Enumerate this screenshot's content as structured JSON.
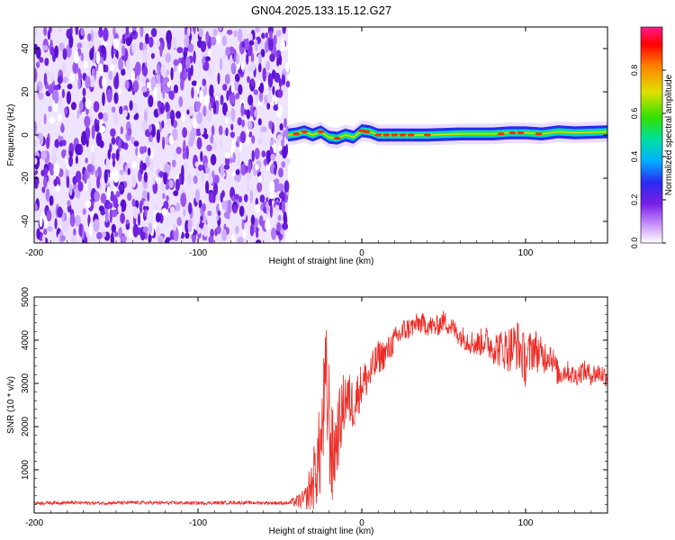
{
  "figure": {
    "title": "GN04.2025.133.15.12.G27"
  },
  "chart_data": [
    {
      "type": "heatmap",
      "xlabel": "Height of straight line (km)",
      "ylabel": "Frequency (Hz)",
      "xlim": [
        -200,
        150
      ],
      "ylim": [
        -50,
        50
      ],
      "xticks": [
        -200,
        -100,
        0,
        100
      ],
      "yticks": [
        -40,
        -20,
        0,
        20,
        40
      ],
      "colorbar": {
        "label": "Normalized spectral amplitude",
        "range": [
          0,
          1
        ],
        "ticks": [
          "0.0",
          "0.2",
          "0.4",
          "0.6",
          "0.8"
        ],
        "colors": [
          "#ffffff",
          "#cc99ff",
          "#7a1fe6",
          "#2a2af0",
          "#00b0ff",
          "#00e0a0",
          "#30e000",
          "#e0e000",
          "#ff8000",
          "#ff0000",
          "#ff1a8c"
        ]
      },
      "noise_region_km": [
        -200,
        -45
      ],
      "signal_band": {
        "x_range_km": [
          -45,
          150
        ],
        "center_hz": [
          [
            -45,
            0
          ],
          [
            -40,
            0.5
          ],
          [
            -35,
            1.5
          ],
          [
            -30,
            0
          ],
          [
            -25,
            1.5
          ],
          [
            -20,
            -1
          ],
          [
            -15,
            -1.5
          ],
          [
            -10,
            0
          ],
          [
            -5,
            -1
          ],
          [
            0,
            2
          ],
          [
            5,
            1.5
          ],
          [
            10,
            0
          ],
          [
            20,
            0
          ],
          [
            40,
            0
          ],
          [
            60,
            0.5
          ],
          [
            80,
            0.5
          ],
          [
            90,
            1
          ],
          [
            100,
            1
          ],
          [
            110,
            0.5
          ],
          [
            120,
            1.5
          ],
          [
            130,
            1
          ],
          [
            150,
            1.5
          ]
        ],
        "halfwidth_hz": 3,
        "peak_amplitude": 0.95
      },
      "grid": false
    },
    {
      "type": "line",
      "xlabel": "Height of straight line (km)",
      "ylabel": "SNR (10 * v/v)",
      "xlim": [
        -200,
        150
      ],
      "ylim": [
        0,
        5000
      ],
      "xticks": [
        -200,
        -100,
        0,
        100
      ],
      "yticks": [
        1000,
        2000,
        3000,
        4000,
        5000
      ],
      "color": "#ee2a24",
      "series": [
        {
          "x": [
            -200,
            -180,
            -160,
            -140,
            -120,
            -100,
            -80,
            -60,
            -45,
            -35,
            -30,
            -25,
            -22,
            -20,
            -18,
            -15,
            -10,
            -5,
            0,
            5,
            10,
            15,
            20,
            25,
            30,
            35,
            40,
            45,
            50,
            55,
            60,
            65,
            70,
            75,
            80,
            85,
            90,
            95,
            100,
            105,
            110,
            115,
            120,
            125,
            130,
            135,
            140,
            145,
            150
          ],
          "y": [
            230,
            240,
            230,
            240,
            235,
            230,
            240,
            235,
            230,
            300,
            700,
            1500,
            3000,
            2200,
            1200,
            1800,
            2700,
            2500,
            3000,
            3200,
            3600,
            3700,
            4000,
            4200,
            4300,
            4400,
            4350,
            4300,
            4450,
            4300,
            4100,
            4000,
            3900,
            4000,
            3850,
            3800,
            3800,
            3900,
            3500,
            3850,
            3600,
            3700,
            3200,
            3300,
            3150,
            3300,
            3200,
            3250,
            3150
          ],
          "noise_amplitude": [
            40,
            40,
            40,
            40,
            40,
            40,
            40,
            40,
            40,
            250,
            700,
            1200,
            1400,
            1500,
            1200,
            900,
            700,
            600,
            500,
            450,
            400,
            350,
            300,
            300,
            250,
            250,
            250,
            250,
            250,
            250,
            250,
            300,
            300,
            350,
            400,
            450,
            550,
            600,
            600,
            500,
            450,
            350,
            300,
            250,
            250,
            250,
            250,
            250,
            250
          ]
        }
      ]
    }
  ]
}
